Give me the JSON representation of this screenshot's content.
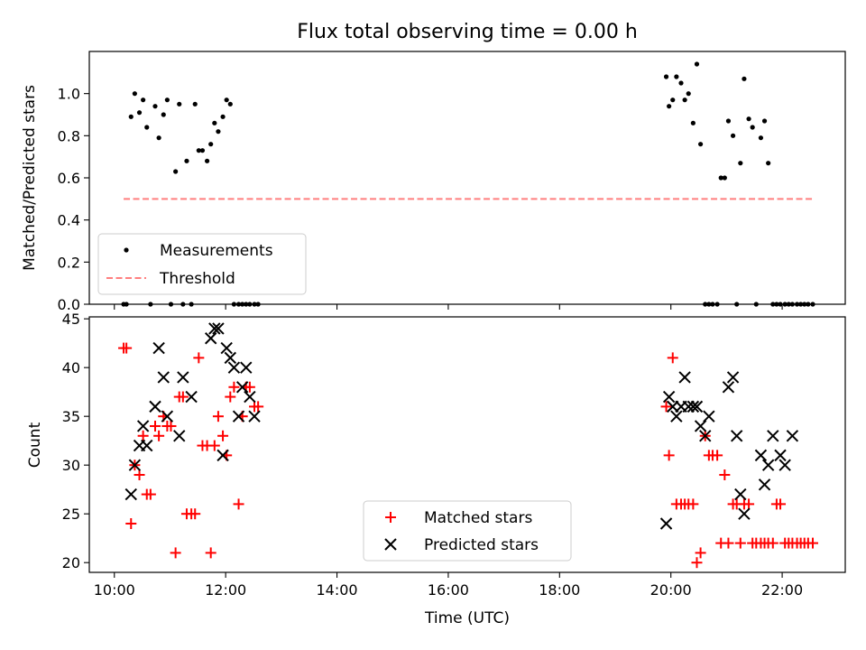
{
  "figure": {
    "title": "Flux total observing time = 0.00 h",
    "xlabel": "Time (UTC)"
  },
  "chart_data": [
    {
      "type": "scatter",
      "ylabel": "Matched/Predicted stars",
      "xlim": [
        "09:33",
        "23:08"
      ],
      "ylim": [
        0,
        1.2
      ],
      "yticks": [
        0.0,
        0.2,
        0.4,
        0.6,
        0.8,
        1.0
      ],
      "xticks": [
        "10:00",
        "12:00",
        "14:00",
        "16:00",
        "18:00",
        "20:00",
        "22:00"
      ],
      "legend_placement": "lower-left",
      "series": [
        {
          "name": "Measurements",
          "marker": "dot",
          "color": "#000000",
          "x": [
            "10:10",
            "10:13",
            "10:18",
            "10:22",
            "10:27",
            "10:31",
            "10:35",
            "10:39",
            "10:44",
            "10:48",
            "10:53",
            "10:57",
            "11:01",
            "11:06",
            "11:10",
            "11:14",
            "11:18",
            "11:23",
            "11:27",
            "11:31",
            "11:35",
            "11:40",
            "11:44",
            "11:48",
            "11:52",
            "11:57",
            "12:01",
            "12:05",
            "12:09",
            "12:14",
            "12:18",
            "12:22",
            "12:26",
            "12:31",
            "12:35",
            "19:55",
            "19:58",
            "20:02",
            "20:06",
            "20:11",
            "20:15",
            "20:19",
            "20:24",
            "20:28",
            "20:32",
            "20:37",
            "20:41",
            "20:45",
            "20:50",
            "20:54",
            "20:58",
            "21:02",
            "21:07",
            "21:11",
            "21:15",
            "21:19",
            "21:24",
            "21:28",
            "21:32",
            "21:37",
            "21:41",
            "21:45",
            "21:50",
            "21:54",
            "21:58",
            "22:03",
            "22:07",
            "22:11",
            "22:16",
            "22:20",
            "22:24",
            "22:28",
            "22:33"
          ],
          "y": [
            0,
            0,
            0.89,
            1.0,
            0.91,
            0.97,
            0.84,
            0,
            0.94,
            0.79,
            0.9,
            0.97,
            0,
            0.63,
            0.95,
            0,
            0.68,
            0,
            0.95,
            0.73,
            0.73,
            0.68,
            0.76,
            0.86,
            0.82,
            0.89,
            0.97,
            0.95,
            0,
            0,
            0,
            0,
            0,
            0,
            0,
            1.08,
            0.94,
            0.97,
            1.08,
            1.05,
            0.97,
            1.0,
            0.86,
            1.14,
            0.76,
            0,
            0,
            0,
            0,
            0.6,
            0.6,
            0.87,
            0.8,
            0,
            0.67,
            1.07,
            0.88,
            0.84,
            0,
            0.79,
            0.87,
            0.67,
            0,
            0,
            0,
            0,
            0,
            0,
            0,
            0,
            0,
            0,
            0
          ]
        },
        {
          "name": "Threshold",
          "marker": "dashed-line",
          "color": "#ff7f7f",
          "x": [
            "10:10",
            "22:33"
          ],
          "y": [
            0.5,
            0.5
          ]
        }
      ]
    },
    {
      "type": "scatter",
      "ylabel": "Count",
      "xlim": [
        "09:33",
        "23:08"
      ],
      "ylim": [
        19,
        45.2
      ],
      "yticks": [
        20,
        25,
        30,
        35,
        40,
        45
      ],
      "xticks": [
        "10:00",
        "12:00",
        "14:00",
        "16:00",
        "18:00",
        "20:00",
        "22:00"
      ],
      "legend_placement": "lower-center",
      "series": [
        {
          "name": "Matched stars",
          "marker": "plus",
          "color": "#ff0000",
          "x": [
            "10:10",
            "10:13",
            "10:18",
            "10:22",
            "10:27",
            "10:31",
            "10:35",
            "10:39",
            "10:44",
            "10:48",
            "10:53",
            "10:57",
            "11:01",
            "11:06",
            "11:10",
            "11:14",
            "11:18",
            "11:23",
            "11:27",
            "11:31",
            "11:35",
            "11:40",
            "11:44",
            "11:48",
            "11:52",
            "11:57",
            "12:01",
            "12:05",
            "12:09",
            "12:14",
            "12:18",
            "12:22",
            "12:26",
            "12:31",
            "12:35",
            "19:55",
            "19:58",
            "20:02",
            "20:06",
            "20:11",
            "20:15",
            "20:19",
            "20:24",
            "20:28",
            "20:32",
            "20:37",
            "20:41",
            "20:45",
            "20:50",
            "20:54",
            "20:58",
            "21:02",
            "21:07",
            "21:11",
            "21:15",
            "21:19",
            "21:24",
            "21:28",
            "21:32",
            "21:37",
            "21:41",
            "21:45",
            "21:50",
            "21:54",
            "21:58",
            "22:03",
            "22:07",
            "22:11",
            "22:16",
            "22:20",
            "22:24",
            "22:28",
            "22:33"
          ],
          "y": [
            42,
            42,
            24,
            30,
            29,
            33,
            27,
            27,
            34,
            33,
            35,
            34,
            34,
            21,
            37,
            37,
            25,
            25,
            25,
            41,
            32,
            32,
            21,
            32,
            35,
            33,
            31,
            37,
            38,
            26,
            35,
            38,
            38,
            36,
            36,
            36,
            31,
            41,
            26,
            26,
            26,
            26,
            26,
            20,
            21,
            33,
            31,
            31,
            31,
            22,
            29,
            22,
            26,
            26,
            22,
            26,
            26,
            22,
            22,
            22,
            22,
            22,
            22,
            26,
            26,
            22,
            22,
            22,
            22,
            22,
            22,
            22,
            22
          ]
        },
        {
          "name": "Predicted stars",
          "marker": "x",
          "color": "#000000",
          "x": [
            "10:18",
            "10:22",
            "10:27",
            "10:31",
            "10:35",
            "10:44",
            "10:48",
            "10:53",
            "10:57",
            "11:10",
            "11:14",
            "11:23",
            "11:44",
            "11:48",
            "11:52",
            "11:57",
            "12:01",
            "12:05",
            "12:09",
            "12:14",
            "12:18",
            "12:22",
            "12:26",
            "12:31",
            "19:55",
            "19:58",
            "20:02",
            "20:06",
            "20:11",
            "20:15",
            "20:19",
            "20:24",
            "20:28",
            "20:32",
            "20:37",
            "20:41",
            "21:02",
            "21:07",
            "21:11",
            "21:15",
            "21:19",
            "21:37",
            "21:41",
            "21:45",
            "21:50",
            "21:58",
            "22:03",
            "22:11"
          ],
          "y": [
            27,
            30,
            32,
            34,
            32,
            36,
            42,
            39,
            35,
            33,
            39,
            37,
            43,
            44,
            44,
            31,
            42,
            41,
            40,
            35,
            38,
            40,
            37,
            35,
            24,
            37,
            36,
            35,
            36,
            39,
            36,
            36,
            36,
            34,
            33,
            35,
            38,
            39,
            33,
            27,
            25,
            31,
            28,
            30,
            33,
            31,
            30,
            33
          ]
        }
      ]
    }
  ]
}
